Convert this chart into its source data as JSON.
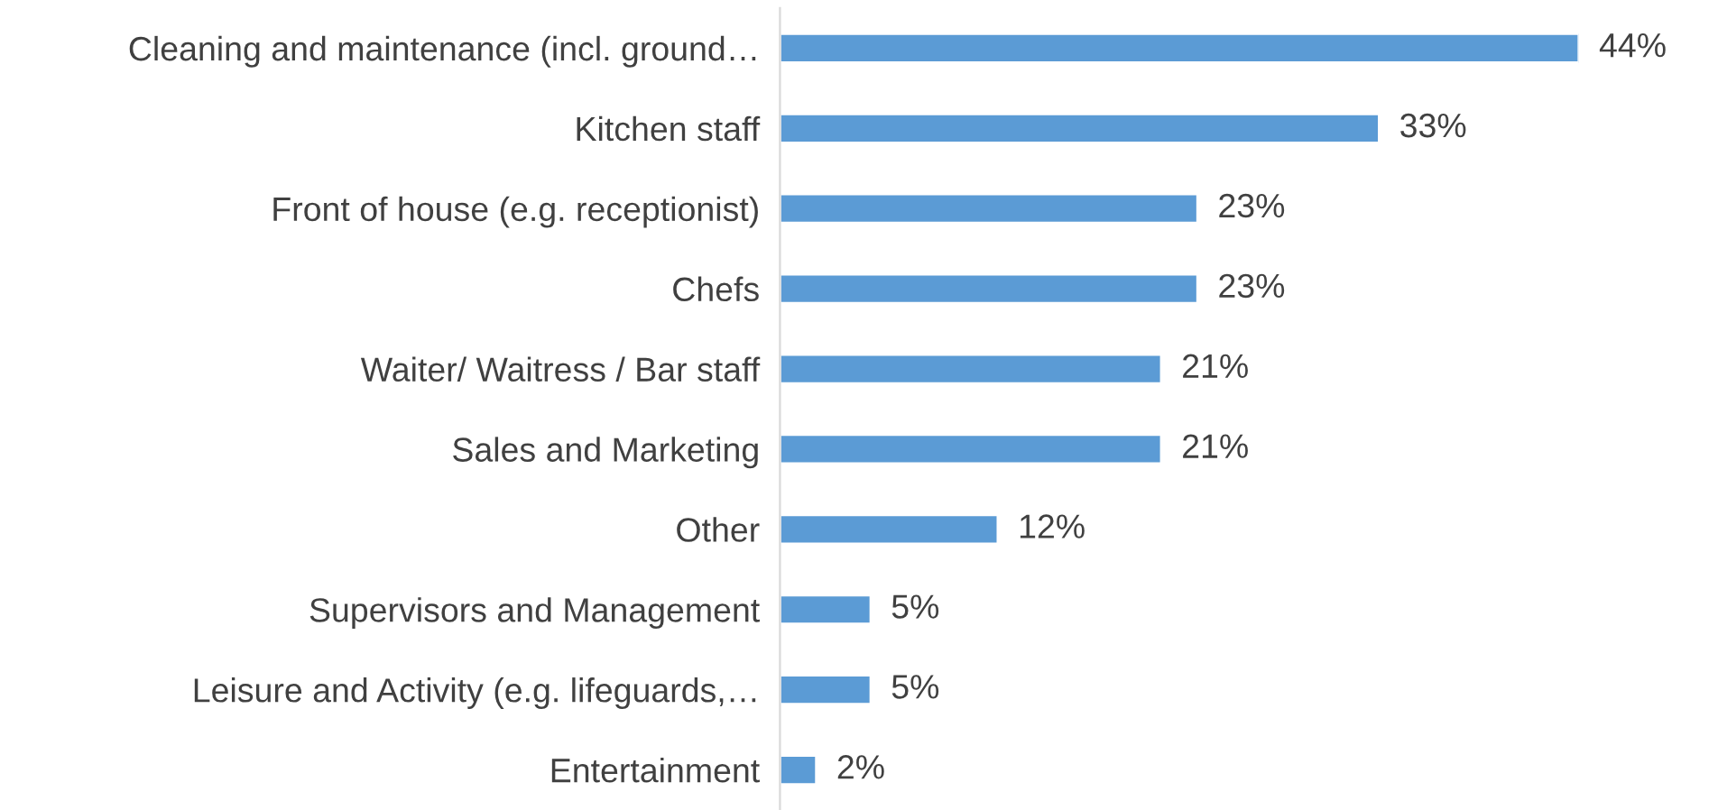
{
  "chart_data": {
    "type": "bar",
    "orientation": "horizontal",
    "categories": [
      "Cleaning and maintenance (incl. ground…",
      "Kitchen staff",
      "Front of house (e.g. receptionist)",
      "Chefs",
      "Waiter/ Waitress / Bar staff",
      "Sales and Marketing",
      "Other",
      "Supervisors and Management",
      "Leisure and Activity (e.g. lifeguards,…",
      "Entertainment"
    ],
    "values": [
      44,
      33,
      23,
      23,
      21,
      21,
      12,
      5,
      5,
      2
    ],
    "value_labels": [
      "44%",
      "33%",
      "23%",
      "23%",
      "21%",
      "21%",
      "12%",
      "5%",
      "5%",
      "2%"
    ],
    "color": "#5b9bd5",
    "grid": false,
    "legend": false
  }
}
